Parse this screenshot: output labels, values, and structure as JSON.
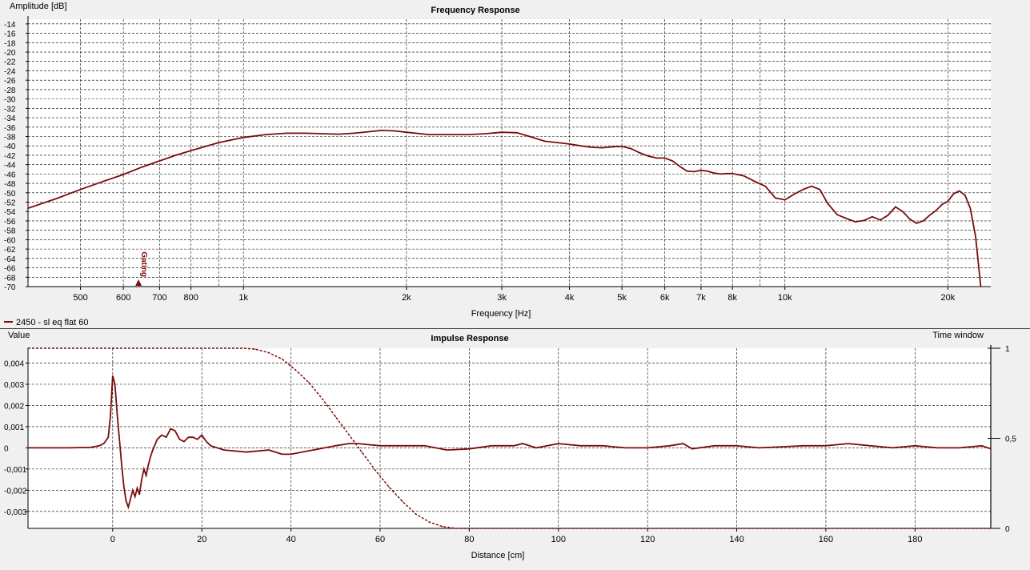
{
  "chart_data": [
    {
      "type": "line",
      "title": "Frequency Response",
      "ylabel": "Amplitude [dB]",
      "xlabel": "Frequency [Hz]",
      "xscale": "log",
      "xlim": [
        400,
        24000
      ],
      "ylim": [
        -70,
        -13
      ],
      "grid": true,
      "y_ticks": [
        "-14",
        "-16",
        "-18",
        "-20",
        "-22",
        "-24",
        "-26",
        "-28",
        "-30",
        "-32",
        "-34",
        "-36",
        "-38",
        "-40",
        "-42",
        "-44",
        "-46",
        "-48",
        "-50",
        "-52",
        "-54",
        "-56",
        "-58",
        "-60",
        "-62",
        "-64",
        "-66",
        "-68",
        "-70"
      ],
      "x_ticks": [
        {
          "value": 500,
          "label": "500"
        },
        {
          "value": 600,
          "label": "600"
        },
        {
          "value": 700,
          "label": "700"
        },
        {
          "value": 800,
          "label": "800"
        },
        {
          "value": 1000,
          "label": "1k"
        },
        {
          "value": 2000,
          "label": "2k"
        },
        {
          "value": 3000,
          "label": "3k"
        },
        {
          "value": 4000,
          "label": "4k"
        },
        {
          "value": 5000,
          "label": "5k"
        },
        {
          "value": 6000,
          "label": "6k"
        },
        {
          "value": 7000,
          "label": "7k"
        },
        {
          "value": 8000,
          "label": "8k"
        },
        {
          "value": 10000,
          "label": "10k"
        },
        {
          "value": 20000,
          "label": "20k"
        }
      ],
      "x_grid_extra": [
        900,
        9000
      ],
      "annotation": {
        "label": "Gating",
        "frequency": 640
      },
      "legend": {
        "label": "2450 - sl eq flat 60",
        "placement": "bottom-left"
      },
      "series": [
        {
          "name": "2450 - sl eq flat 60",
          "color": "#7a0c0c",
          "x": [
            400,
            450,
            500,
            550,
            600,
            650,
            700,
            750,
            800,
            900,
            1000,
            1100,
            1200,
            1300,
            1400,
            1500,
            1600,
            1700,
            1800,
            1900,
            2000,
            2200,
            2400,
            2600,
            2800,
            3000,
            3200,
            3400,
            3600,
            3800,
            4000,
            4200,
            4400,
            4600,
            4800,
            5000,
            5200,
            5400,
            5600,
            5800,
            6000,
            6200,
            6400,
            6600,
            6800,
            7000,
            7200,
            7400,
            7600,
            7800,
            8000,
            8400,
            8800,
            9200,
            9600,
            10000,
            10400,
            10800,
            11200,
            11600,
            12000,
            12500,
            13000,
            13500,
            14000,
            14500,
            15000,
            15500,
            16000,
            16500,
            17000,
            17500,
            18000,
            18500,
            19000,
            19500,
            20000,
            20500,
            21000,
            21500,
            22000,
            22500,
            23000
          ],
          "y": [
            -53.3,
            -51.3,
            -49.3,
            -47.6,
            -46.1,
            -44.5,
            -43.2,
            -42.0,
            -41.0,
            -39.3,
            -38.2,
            -37.6,
            -37.3,
            -37.3,
            -37.4,
            -37.5,
            -37.3,
            -37.0,
            -36.7,
            -36.8,
            -37.1,
            -37.6,
            -37.6,
            -37.6,
            -37.4,
            -37.1,
            -37.2,
            -38.1,
            -39.0,
            -39.3,
            -39.6,
            -40.0,
            -40.3,
            -40.4,
            -40.2,
            -40.1,
            -40.6,
            -41.5,
            -42.2,
            -42.6,
            -42.6,
            -43.2,
            -44.4,
            -45.4,
            -45.5,
            -45.2,
            -45.4,
            -45.8,
            -46.0,
            -45.9,
            -45.9,
            -46.4,
            -47.6,
            -48.6,
            -51.1,
            -51.5,
            -50.3,
            -49.3,
            -48.6,
            -49.3,
            -52.3,
            -54.7,
            -55.5,
            -56.2,
            -55.9,
            -55.1,
            -55.8,
            -54.8,
            -53.0,
            -54.0,
            -55.6,
            -56.5,
            -56.0,
            -54.8,
            -53.8,
            -52.5,
            -51.8,
            -50.2,
            -49.6,
            -50.5,
            -53.3,
            -59.3,
            -70.0
          ]
        }
      ]
    },
    {
      "type": "line",
      "title": "Impulse Response",
      "ylabel": "Value",
      "xlabel": "Distance [cm]",
      "y2label": "Time window",
      "xlim": [
        -19,
        197
      ],
      "ylim": [
        -0.0038,
        0.0047
      ],
      "y2lim": [
        0,
        1
      ],
      "grid": true,
      "x_ticks": [
        "0",
        "20",
        "40",
        "60",
        "80",
        "100",
        "120",
        "140",
        "160",
        "180"
      ],
      "y_ticks": [
        "0,004",
        "0,003",
        "0,002",
        "0,001",
        "0",
        "-0,001",
        "-0,002",
        "-0,003"
      ],
      "y2_ticks": [
        "1",
        "0,5",
        "0"
      ],
      "series": [
        {
          "name": "impulse",
          "color": "#7a0c0c",
          "axis": "left",
          "x": [
            -19,
            -10,
            -5,
            -3,
            -2,
            -1,
            -0.5,
            0,
            0.5,
            1,
            1.5,
            2,
            2.5,
            3,
            3.5,
            4,
            4.5,
            5,
            5.5,
            6,
            6.5,
            7,
            7.5,
            8,
            8.5,
            9,
            10,
            11,
            12,
            13,
            14,
            15,
            16,
            17,
            18,
            19,
            20,
            21,
            22,
            25,
            30,
            35,
            38,
            40,
            45,
            50,
            53,
            55,
            60,
            65,
            70,
            75,
            80,
            85,
            90,
            92,
            95,
            100,
            105,
            110,
            115,
            120,
            125,
            128,
            130,
            135,
            140,
            145,
            150,
            155,
            160,
            165,
            170,
            175,
            180,
            185,
            190,
            195,
            197
          ],
          "y": [
            0,
            0,
            2e-05,
            0.0001,
            0.0002,
            0.0005,
            0.0015,
            0.0034,
            0.003,
            0.0016,
            0.0004,
            -0.0008,
            -0.0018,
            -0.0025,
            -0.0028,
            -0.0024,
            -0.002,
            -0.0023,
            -0.0019,
            -0.0022,
            -0.0015,
            -0.001,
            -0.0013,
            -0.0008,
            -0.0004,
            -0.0001,
            0.0004,
            0.0006,
            0.0005,
            0.0009,
            0.0008,
            0.0004,
            0.0003,
            0.0005,
            0.0005,
            0.0004,
            0.0006,
            0.0003,
            0.0001,
            -0.0001,
            -0.0002,
            -0.0001,
            -0.0003,
            -0.0003,
            -0.0001,
            0.0001,
            0.0002,
            0.0002,
            0.0001,
            0.0001,
            0.0001,
            -0.0001,
            -5e-05,
            0.0001,
            0.0001,
            0.0002,
            0,
            0.0002,
            0.0001,
            0.0001,
            0,
            0,
            0.0001,
            0.0002,
            -5e-05,
            0.0001,
            0.0001,
            0,
            5e-05,
            0.0001,
            0.0001,
            0.0002,
            0.0001,
            0,
            0.0001,
            0,
            0,
            0.0001,
            -5e-05
          ]
        },
        {
          "name": "time window",
          "color": "#7a0c0c",
          "axis": "right",
          "dashed": true,
          "x": [
            -19,
            0,
            0,
            29,
            32,
            35,
            38,
            41,
            44,
            47,
            50,
            53,
            56,
            59,
            62,
            65,
            68,
            71,
            74,
            77,
            80,
            197
          ],
          "y": [
            1,
            1,
            1,
            1,
            0.995,
            0.975,
            0.94,
            0.88,
            0.81,
            0.72,
            0.62,
            0.52,
            0.42,
            0.32,
            0.23,
            0.15,
            0.08,
            0.035,
            0.01,
            0,
            0,
            0
          ]
        }
      ]
    }
  ]
}
